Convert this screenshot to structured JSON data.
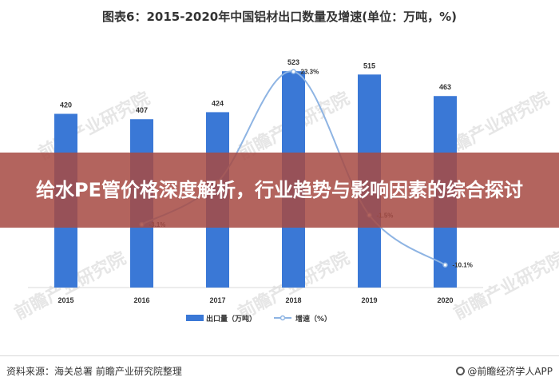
{
  "watermark": "前瞻产业研究院",
  "banner": {
    "text": "给水PE管价格深度解析，行业趋势与影响因素的综合探讨"
  },
  "footer": {
    "source": "资料来源：海关总署 前瞻产业研究院整理",
    "brand": "@前瞻经济学人APP"
  },
  "chart_data": {
    "type": "bar",
    "title": "图表6：2015-2020年中国铝材出口数量及增速(单位：万吨，%)",
    "categories": [
      "2015",
      "2016",
      "2017",
      "2018",
      "2019",
      "2020"
    ],
    "series": [
      {
        "name": "出口量（万吨）",
        "type": "bar",
        "color": "#3a78d6",
        "values": [
          420,
          407,
          424,
          523,
          515,
          463
        ],
        "labels": [
          "420",
          "407",
          "424",
          "523",
          "515",
          "463"
        ]
      },
      {
        "name": "增速（%）",
        "type": "line",
        "color": "#8eb4e3",
        "values": [
          null,
          -3.1,
          4.2,
          23.3,
          -1.5,
          -10.1
        ],
        "labels": [
          "",
          "-3.1%",
          "",
          "23.3%",
          "-1.5%",
          "-10.1%"
        ]
      }
    ],
    "bar_ylim": [
      0,
      560
    ],
    "line_ylim": [
      -14,
      26
    ],
    "legend_position": "bottom",
    "grid": false
  }
}
